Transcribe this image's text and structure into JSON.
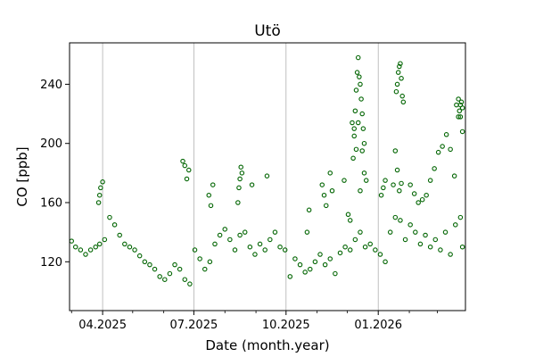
{
  "chart_data": {
    "type": "scatter",
    "title": "Utö",
    "xlabel": "Date (month.year)",
    "ylabel": "CO [ppb]",
    "x_range": [
      "2025-02-27",
      "2026-03-29"
    ],
    "ylim": [
      87,
      268
    ],
    "x_ticks": [
      {
        "date": "2025-04-01",
        "label": "04.2025"
      },
      {
        "date": "2025-07-01",
        "label": "07.2025"
      },
      {
        "date": "2025-10-01",
        "label": "10.2025"
      },
      {
        "date": "2026-01-01",
        "label": "01.2026"
      }
    ],
    "x_minor_ticks": [
      "2025-03-01",
      "2025-05-01",
      "2025-06-01",
      "2025-08-01",
      "2025-09-01",
      "2025-11-01",
      "2025-12-01",
      "2026-02-01",
      "2026-03-01"
    ],
    "y_ticks": [
      120,
      160,
      200,
      240
    ],
    "grid": "vertical gridlines at major x ticks",
    "marker": {
      "shape": "open circle",
      "color": "#006400"
    },
    "series": [
      {
        "x": [
          "2025-03-01",
          "2025-03-05",
          "2025-03-10",
          "2025-03-15",
          "2025-03-20",
          "2025-03-25",
          "2025-03-29",
          "2025-04-03",
          "2025-04-08",
          "2025-04-13",
          "2025-04-18",
          "2025-04-23",
          "2025-04-28",
          "2025-05-03",
          "2025-05-08",
          "2025-05-13",
          "2025-05-18",
          "2025-05-23",
          "2025-05-28",
          "2025-06-02",
          "2025-06-07",
          "2025-06-12",
          "2025-06-17",
          "2025-06-22",
          "2025-06-27",
          "2025-07-02",
          "2025-07-07",
          "2025-07-12",
          "2025-07-17",
          "2025-07-22",
          "2025-07-27",
          "2025-08-01",
          "2025-08-06",
          "2025-08-11",
          "2025-08-16",
          "2025-08-21",
          "2025-08-26",
          "2025-08-31",
          "2025-09-05",
          "2025-09-10",
          "2025-09-15",
          "2025-09-20",
          "2025-09-25",
          "2025-09-30",
          "2025-10-05",
          "2025-10-10",
          "2025-10-15",
          "2025-10-20",
          "2025-10-25",
          "2025-10-30",
          "2025-11-04",
          "2025-11-09",
          "2025-11-14",
          "2025-11-19",
          "2025-11-24",
          "2025-11-29",
          "2025-12-04",
          "2025-12-09",
          "2025-12-14",
          "2025-12-19",
          "2025-12-24",
          "2025-12-29",
          "2026-01-03",
          "2026-01-08",
          "2026-01-13",
          "2026-01-18",
          "2026-01-23",
          "2026-01-28",
          "2026-02-02",
          "2026-02-07",
          "2026-02-12",
          "2026-02-17",
          "2026-02-22",
          "2026-02-27",
          "2026-03-04",
          "2026-03-09",
          "2026-03-14",
          "2026-03-19",
          "2026-03-24",
          "2026-03-26"
        ],
        "y": [
          134,
          130,
          128,
          125,
          128,
          130,
          132,
          135,
          150,
          145,
          138,
          132,
          130,
          128,
          124,
          120,
          118,
          115,
          110,
          108,
          112,
          118,
          115,
          108,
          105,
          128,
          122,
          115,
          120,
          132,
          138,
          142,
          135,
          128,
          138,
          140,
          130,
          125,
          132,
          128,
          135,
          140,
          130,
          128,
          110,
          122,
          118,
          113,
          115,
          120,
          125,
          118,
          122,
          112,
          126,
          130,
          128,
          135,
          140,
          130,
          132,
          128,
          125,
          120,
          140,
          150,
          148,
          135,
          145,
          140,
          132,
          138,
          130,
          135,
          128,
          140,
          125,
          145,
          150,
          130
        ]
      },
      {
        "x": [
          "2025-03-28",
          "2025-03-29",
          "2025-03-30",
          "2025-04-01",
          "2025-06-20",
          "2025-06-22",
          "2025-06-24",
          "2025-06-26",
          "2025-07-16",
          "2025-07-18",
          "2025-07-20",
          "2025-08-14",
          "2025-08-15",
          "2025-08-16",
          "2025-08-17",
          "2025-08-18",
          "2025-08-28",
          "2025-09-12",
          "2025-10-22",
          "2025-10-24",
          "2025-11-06",
          "2025-11-08",
          "2025-11-10",
          "2025-11-14",
          "2025-11-16",
          "2025-11-28",
          "2025-12-02",
          "2025-12-04",
          "2025-12-06",
          "2025-12-08",
          "2025-12-10",
          "2025-12-12",
          "2025-12-14",
          "2025-12-16",
          "2025-12-18",
          "2025-12-20",
          "2026-01-04",
          "2026-01-06",
          "2026-01-08",
          "2026-01-16",
          "2026-01-18",
          "2026-01-20",
          "2026-01-22",
          "2026-01-24",
          "2026-02-02",
          "2026-02-06",
          "2026-02-10",
          "2026-02-14",
          "2026-02-18",
          "2026-02-22",
          "2026-02-26",
          "2026-03-02",
          "2026-03-06",
          "2026-03-10",
          "2026-03-14",
          "2026-03-18",
          "2026-03-20",
          "2026-03-22",
          "2026-03-24",
          "2026-03-26"
        ],
        "y": [
          160,
          165,
          170,
          174,
          188,
          185,
          176,
          182,
          165,
          158,
          172,
          160,
          170,
          176,
          184,
          180,
          172,
          178,
          140,
          155,
          172,
          165,
          158,
          180,
          168,
          175,
          152,
          148,
          214,
          210,
          196,
          214,
          168,
          195,
          180,
          175,
          165,
          170,
          175,
          172,
          195,
          182,
          168,
          173,
          172,
          166,
          160,
          162,
          165,
          175,
          183,
          194,
          198,
          206,
          196,
          178,
          226,
          230,
          218,
          208
        ]
      },
      {
        "x": [
          "2025-12-07",
          "2025-12-08",
          "2025-12-09",
          "2025-12-10",
          "2025-12-11",
          "2025-12-12",
          "2025-12-13",
          "2025-12-14",
          "2025-12-15",
          "2025-12-16",
          "2025-12-17",
          "2025-12-18",
          "2026-01-19",
          "2026-01-20",
          "2026-01-21",
          "2026-01-22",
          "2026-01-23",
          "2026-01-24",
          "2026-01-25",
          "2026-01-26",
          "2026-03-22",
          "2026-03-23",
          "2026-03-24",
          "2026-03-25",
          "2026-03-26"
        ],
        "y": [
          190,
          205,
          222,
          236,
          248,
          258,
          245,
          240,
          230,
          220,
          210,
          200,
          235,
          240,
          248,
          252,
          254,
          244,
          232,
          228,
          218,
          222,
          226,
          228,
          224
        ]
      }
    ]
  }
}
